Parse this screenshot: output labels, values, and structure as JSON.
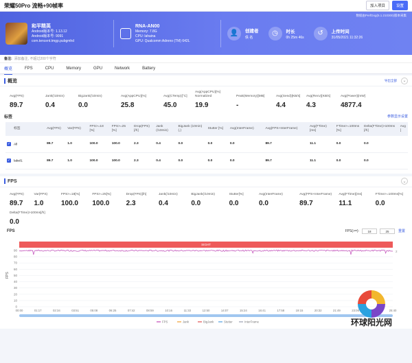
{
  "window": {
    "title": "荣耀50Pro 流畅+90帧率",
    "join_btn": "加入项目",
    "settings_btn": "设置"
  },
  "hero": {
    "game_name": "和平精英",
    "app_version": "Android版本号: 1.13.12",
    "android_version": "Android版本号: 9091",
    "package": "com.tencent.tmgp.pubgmhd",
    "device_name": "RNA-AN00",
    "memory": "Memory: 7.8G",
    "cpu": "CPU: lahaina",
    "gpu": "GPU: Qualcomm Adreno (TM) 642L",
    "creator_label": "创建者",
    "creator_value": "佚 名",
    "duration_label": "时长",
    "duration_value": "0h 25m 46s",
    "upload_label": "上传时间",
    "upload_value": "31/05/2021 11:32:26",
    "version_note": "数据由PerfDog(5.1.210300)版本采集"
  },
  "notice": {
    "label": "备注:",
    "placeholder": "添加备注, 不超过200个字符"
  },
  "tabs": [
    "概览",
    "FPS",
    "CPU",
    "Memory",
    "GPU",
    "Network",
    "Battery"
  ],
  "overview": {
    "title": "概览",
    "export": "导出全部",
    "stats": [
      {
        "label": "Avg(FPS)",
        "value": "89.7"
      },
      {
        "label": "Jank(/10min)",
        "value": "0.4"
      },
      {
        "label": "BigJank(/10min)",
        "value": "0.0"
      },
      {
        "label": "Avg(AppCPU)[%]",
        "value": "25.8"
      },
      {
        "label": "Avg(CTemp)[°C]",
        "value": "45.0"
      },
      {
        "label": "Avg(AppCPU)[%] Normalized",
        "value": "19.9"
      },
      {
        "label": "Peak(Memory)[MB]",
        "value": "-"
      },
      {
        "label": "Avg(Send)[KB/s]",
        "value": "4.4"
      },
      {
        "label": "Avg(Recv)[KB/s]",
        "value": "4.3"
      },
      {
        "label": "Avg(Power)[mW]",
        "value": "4877.4"
      }
    ]
  },
  "labels": {
    "title": "标签",
    "config_link": "参数显示设置",
    "headers": [
      "标签",
      "Avg(FPS)",
      "Var(FPS)",
      "FPS>=18 [%]",
      "FPS>=25 [%]",
      "Drop(FPS) [/h]",
      "Jank (/10min)",
      "BigJank (10min)(,)",
      "Stutter [%]",
      "Avg(InterFrame)",
      "Avg(FPS+InterFrame)",
      "Avg(FTime) [ms]",
      "FTime>=100ms [%]",
      "Delta(FTime)>100ms [/h]",
      "Avg ["
    ],
    "rows": [
      [
        "All",
        "89.7",
        "1.0",
        "100.0",
        "100.0",
        "2.3",
        "0.4",
        "0.0",
        "0.0",
        "0.0",
        "89.7",
        "11.1",
        "0.0",
        "0.0",
        ""
      ],
      [
        "label1",
        "89.7",
        "1.0",
        "100.0",
        "100.0",
        "2.3",
        "0.4",
        "0.0",
        "0.0",
        "0.0",
        "89.7",
        "11.1",
        "0.0",
        "0.0",
        ""
      ]
    ]
  },
  "fps_panel": {
    "title": "FPS",
    "stats_row1": [
      {
        "label": "Avg(FPS)",
        "value": "89.7"
      },
      {
        "label": "Var(FPS)",
        "value": "1.0"
      },
      {
        "label": "FPS>=18[%]",
        "value": "100.0"
      },
      {
        "label": "FPS>=25[%]",
        "value": "100.0"
      },
      {
        "label": "Drop(FPS)[/h]",
        "value": "2.3"
      },
      {
        "label": "Jank(/10min)",
        "value": "0.4"
      },
      {
        "label": "BigJank(/10min)",
        "value": "0.0"
      },
      {
        "label": "Stutter[%]",
        "value": "0.0"
      },
      {
        "label": "Avg(InterFrame)",
        "value": "0.0"
      },
      {
        "label": "Avg(FPS+InterFrame)",
        "value": "89.7"
      },
      {
        "label": "Avg(FTime)[ms]",
        "value": "11.1"
      },
      {
        "label": "FTime>=100ms[%]",
        "value": "0.0"
      }
    ],
    "stats_row2": [
      {
        "label": "Delta(FTime)>100ms[/h]",
        "value": "0.0"
      }
    ],
    "chart_title": "FPS",
    "fps_filter_label": "FPS(>=):",
    "fps_filter_1": "18",
    "fps_filter_2": "25",
    "reset": "重置",
    "light_label": "SIGHT",
    "watermark": "环球阳光网"
  },
  "chart_data": {
    "type": "line",
    "title": "FPS",
    "ylabel": "FPS",
    "ylim": [
      0,
      90
    ],
    "y_ticks": [
      "90",
      "80",
      "70",
      "60",
      "50",
      "40",
      "30",
      "20",
      "10",
      "0"
    ],
    "x_ticks": [
      "00:00",
      "01:17",
      "02:34",
      "03:51",
      "05:08",
      "06:25",
      "07:42",
      "08:59",
      "10:16",
      "11:33",
      "12:50",
      "14:07",
      "15:24",
      "16:41",
      "17:58",
      "19:15",
      "20:32",
      "21:49",
      "23:06",
      "24:23",
      "25:40"
    ],
    "series": [
      {
        "name": "FPS",
        "color": "#c048b8",
        "approx_value": 89.7
      },
      {
        "name": "Jank",
        "color": "#f0a030"
      },
      {
        "name": "BigJank",
        "color": "#e05050"
      },
      {
        "name": "Stutter",
        "color": "#50a0e0"
      },
      {
        "name": "InterFrame",
        "color": "#9aa0b0"
      }
    ]
  }
}
